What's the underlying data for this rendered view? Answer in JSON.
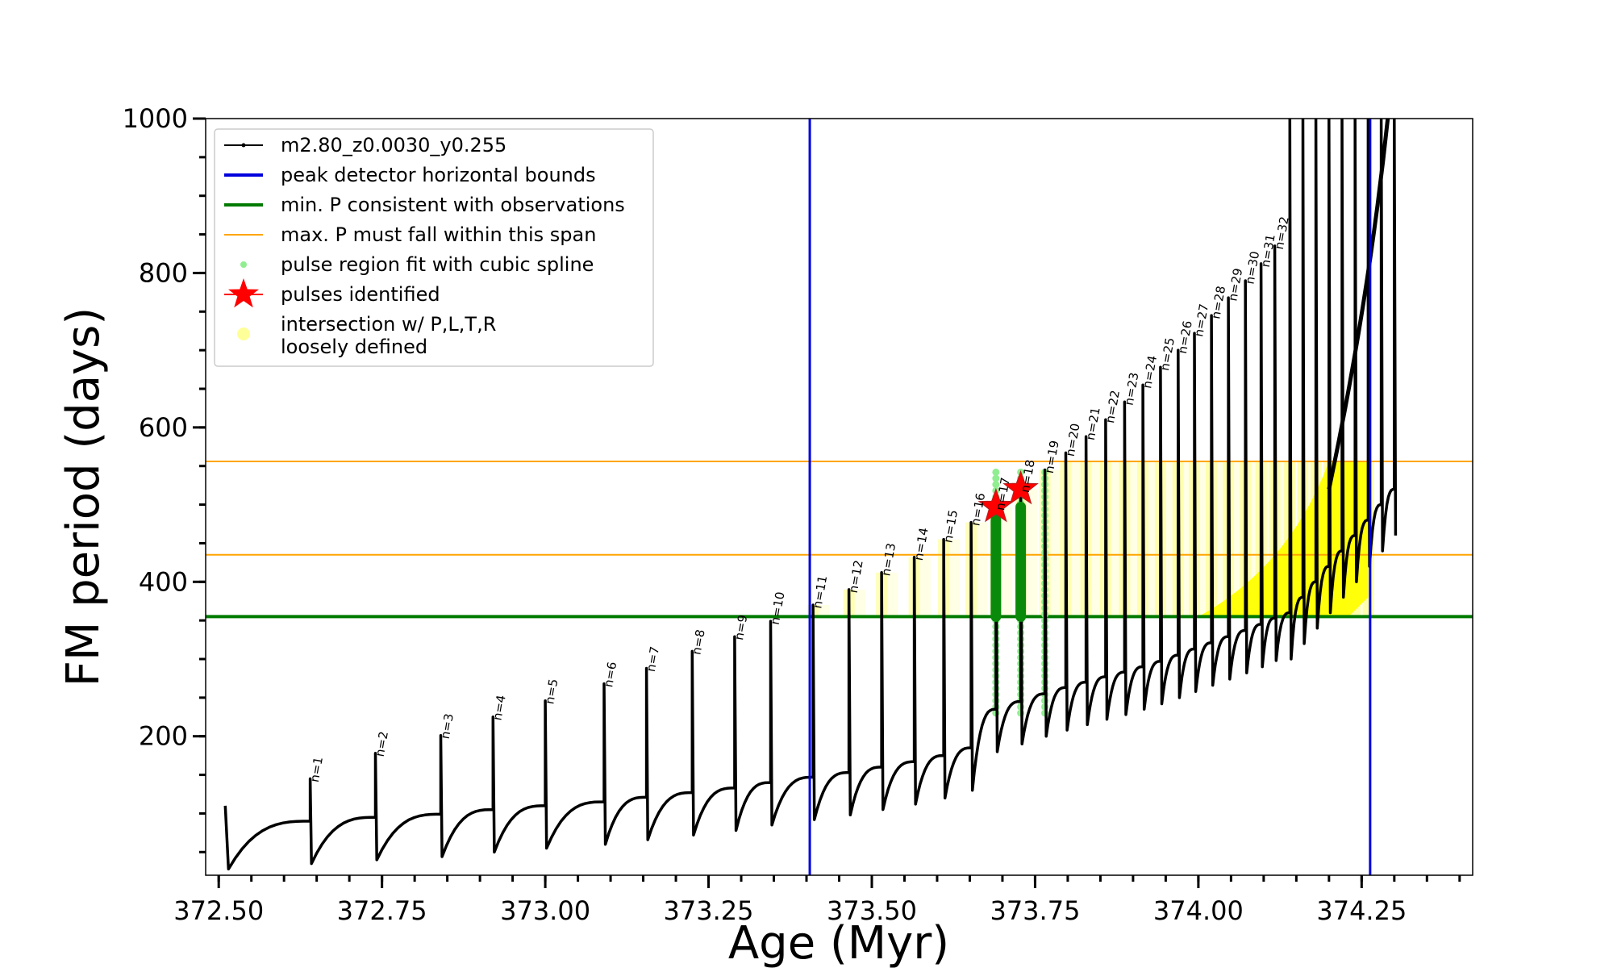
{
  "chart_data": {
    "type": "line",
    "title": "",
    "xlabel": "Age (Myr)",
    "ylabel": "FM period (days)",
    "xlim": [
      372.48,
      374.42
    ],
    "ylim": [
      20,
      1000
    ],
    "xticks": [
      372.5,
      372.75,
      373.0,
      373.25,
      373.5,
      373.75,
      374.0,
      374.25
    ],
    "xtick_labels": [
      "372.50",
      "372.75",
      "373.00",
      "373.25",
      "373.50",
      "373.75",
      "374.00",
      "374.25"
    ],
    "xminor_step": 0.05,
    "yticks": [
      200,
      400,
      600,
      800,
      1000
    ],
    "ytick_labels": [
      "200",
      "400",
      "600",
      "800",
      "1000"
    ],
    "yminor_step": 50,
    "grid": false,
    "legend_position": "top-left",
    "legend": [
      {
        "label": "m2.80_z0.0030_y0.255",
        "kind": "line-marker",
        "color": "#000000"
      },
      {
        "label": "peak detector horizontal bounds",
        "kind": "line",
        "color": "#0000dd"
      },
      {
        "label": "min. P consistent with observations",
        "kind": "line",
        "color": "#007a00"
      },
      {
        "label": "max. P must fall within this span",
        "kind": "thin-line",
        "color": "#ffa500"
      },
      {
        "label": "pulse region fit with cubic spline",
        "kind": "dot",
        "color": "#90ee90"
      },
      {
        "label": "pulses identified",
        "kind": "star",
        "color": "#ff0000"
      },
      {
        "label": "intersection w/ P,L,T,R\nloosely defined",
        "kind": "dot",
        "color": "#ffff99"
      }
    ],
    "vertical_bounds": [
      373.405,
      374.263
    ],
    "min_period": 355,
    "max_period_span": [
      435,
      556
    ],
    "pulses": [
      {
        "label": "n=1",
        "age": 372.64,
        "start": 35,
        "peak": 145
      },
      {
        "label": "n=2",
        "age": 372.74,
        "start": 40,
        "peak": 178
      },
      {
        "label": "n=3",
        "age": 372.84,
        "start": 44,
        "peak": 201
      },
      {
        "label": "n=4",
        "age": 372.92,
        "start": 50,
        "peak": 225
      },
      {
        "label": "n=5",
        "age": 373.0,
        "start": 55,
        "peak": 246
      },
      {
        "label": "n=6",
        "age": 373.09,
        "start": 60,
        "peak": 268
      },
      {
        "label": "n=7",
        "age": 373.155,
        "start": 66,
        "peak": 288
      },
      {
        "label": "n=8",
        "age": 373.225,
        "start": 72,
        "peak": 310
      },
      {
        "label": "n=9",
        "age": 373.29,
        "start": 78,
        "peak": 329
      },
      {
        "label": "n=10",
        "age": 373.345,
        "start": 85,
        "peak": 349
      },
      {
        "label": "n=11",
        "age": 373.41,
        "start": 92,
        "peak": 370
      },
      {
        "label": "n=12",
        "age": 373.465,
        "start": 98,
        "peak": 390
      },
      {
        "label": "n=13",
        "age": 373.515,
        "start": 105,
        "peak": 412
      },
      {
        "label": "n=14",
        "age": 373.565,
        "start": 112,
        "peak": 432
      },
      {
        "label": "n=15",
        "age": 373.61,
        "start": 120,
        "peak": 455
      },
      {
        "label": "n=16",
        "age": 373.652,
        "start": 130,
        "peak": 477
      },
      {
        "label": "n=17",
        "age": 373.69,
        "start": 180,
        "peak": 497
      },
      {
        "label": "n=18",
        "age": 373.728,
        "start": 190,
        "peak": 520
      },
      {
        "label": "n=19",
        "age": 373.765,
        "start": 200,
        "peak": 545
      },
      {
        "label": "n=20",
        "age": 373.797,
        "start": 208,
        "peak": 567
      },
      {
        "label": "n=21",
        "age": 373.828,
        "start": 215,
        "peak": 588
      },
      {
        "label": "n=22",
        "age": 373.858,
        "start": 222,
        "peak": 610
      },
      {
        "label": "n=23",
        "age": 373.887,
        "start": 228,
        "peak": 633
      },
      {
        "label": "n=24",
        "age": 373.915,
        "start": 235,
        "peak": 655
      },
      {
        "label": "n=25",
        "age": 373.942,
        "start": 242,
        "peak": 678
      },
      {
        "label": "n=26",
        "age": 373.969,
        "start": 250,
        "peak": 700
      },
      {
        "label": "n=27",
        "age": 373.994,
        "start": 258,
        "peak": 722
      },
      {
        "label": "n=28",
        "age": 374.02,
        "start": 266,
        "peak": 745
      },
      {
        "label": "n=29",
        "age": 374.046,
        "start": 274,
        "peak": 768
      },
      {
        "label": "n=30",
        "age": 374.072,
        "start": 282,
        "peak": 790
      },
      {
        "label": "n=31",
        "age": 374.096,
        "start": 290,
        "peak": 812
      },
      {
        "label": "n=32",
        "age": 374.117,
        "start": 298,
        "peak": 835
      }
    ],
    "late_spikes": [
      374.14,
      374.16,
      374.18,
      374.2,
      374.22,
      374.24,
      374.26,
      374.28,
      374.3
    ],
    "early_start": {
      "age": 372.51,
      "period": 110,
      "min": 28
    },
    "identified_pulses": [
      {
        "age": 373.69,
        "period": 497
      },
      {
        "age": 373.728,
        "period": 520
      }
    ],
    "spline_fit_pulses": [
      373.69,
      373.728,
      373.765
    ],
    "spline_fit_range": [
      230,
      545
    ],
    "green_segments": [
      {
        "age": 373.69,
        "from": 355,
        "to": 480
      },
      {
        "age": 373.728,
        "from": 355,
        "to": 497
      }
    ],
    "yellow_region": {
      "x_from": 373.41,
      "x_to": 374.26,
      "y_from": 355,
      "y_to": 556
    },
    "final_rise": {
      "from_age": 374.2,
      "to_age": 374.29,
      "from_period": 520,
      "to_period": 1000
    }
  }
}
